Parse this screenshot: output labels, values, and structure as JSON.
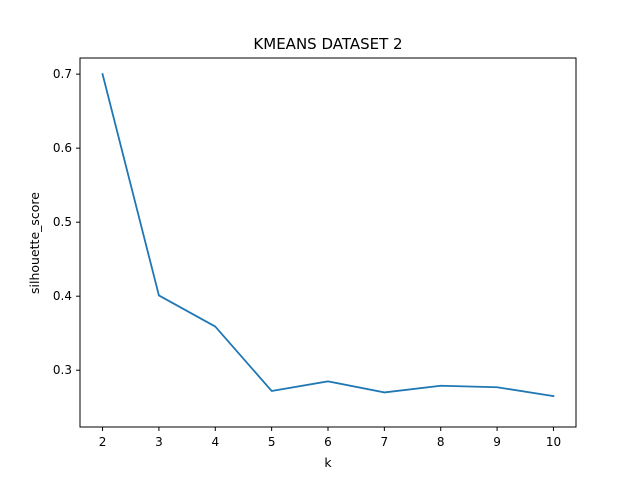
{
  "chart_data": {
    "type": "line",
    "title": "KMEANS DATASET 2",
    "xlabel": "k",
    "ylabel": "silhouette_score",
    "x": [
      2,
      3,
      4,
      5,
      6,
      7,
      8,
      9,
      10
    ],
    "series": [
      {
        "values": [
          0.7,
          0.401,
          0.359,
          0.272,
          0.285,
          0.27,
          0.279,
          0.277,
          0.265
        ],
        "color": "#1f77b4"
      }
    ],
    "xlim": [
      1.6,
      10.4
    ],
    "ylim": [
      0.2233,
      0.7218
    ],
    "xticks": [
      2,
      3,
      4,
      5,
      6,
      7,
      8,
      9,
      10
    ],
    "yticks": [
      0.3,
      0.4,
      0.5,
      0.6,
      0.7
    ],
    "ytick_labels": [
      "0.3",
      "0.4",
      "0.5",
      "0.6",
      "0.7"
    ],
    "grid": false,
    "legend": "none"
  }
}
